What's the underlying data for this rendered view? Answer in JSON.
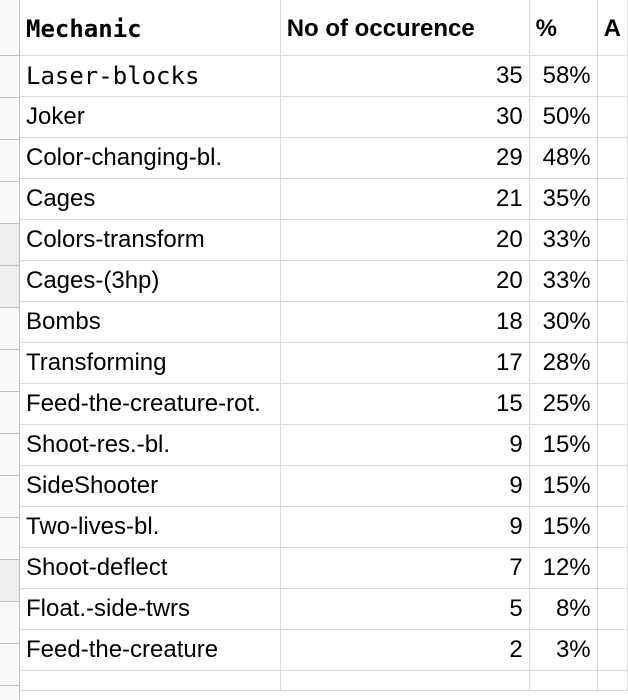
{
  "headers": {
    "mechanic": "Mechanic",
    "count": "No of occurence",
    "percent": "%",
    "extra": "A"
  },
  "rows": [
    {
      "mechanic": "Laser-blocks",
      "count": "35",
      "percent": "58%"
    },
    {
      "mechanic": "Joker",
      "count": "30",
      "percent": "50%"
    },
    {
      "mechanic": "Color-changing-bl.",
      "count": "29",
      "percent": "48%"
    },
    {
      "mechanic": "Cages",
      "count": "21",
      "percent": "35%"
    },
    {
      "mechanic": "Colors-transform",
      "count": "20",
      "percent": "33%"
    },
    {
      "mechanic": "Cages-(3hp)",
      "count": "20",
      "percent": "33%"
    },
    {
      "mechanic": "Bombs",
      "count": "18",
      "percent": "30%"
    },
    {
      "mechanic": "Transforming",
      "count": "17",
      "percent": "28%"
    },
    {
      "mechanic": "Feed-the-creature-rot.",
      "count": "15",
      "percent": "25%"
    },
    {
      "mechanic": "Shoot-res.-bl.",
      "count": "9",
      "percent": "15%"
    },
    {
      "mechanic": "SideShooter",
      "count": "9",
      "percent": "15%"
    },
    {
      "mechanic": "Two-lives-bl.",
      "count": "9",
      "percent": "15%"
    },
    {
      "mechanic": "Shoot-deflect",
      "count": "7",
      "percent": "12%"
    },
    {
      "mechanic": "Float.-side-twrs",
      "count": "5",
      "percent": "8%"
    },
    {
      "mechanic": "Feed-the-creature",
      "count": "2",
      "percent": "3%"
    }
  ]
}
